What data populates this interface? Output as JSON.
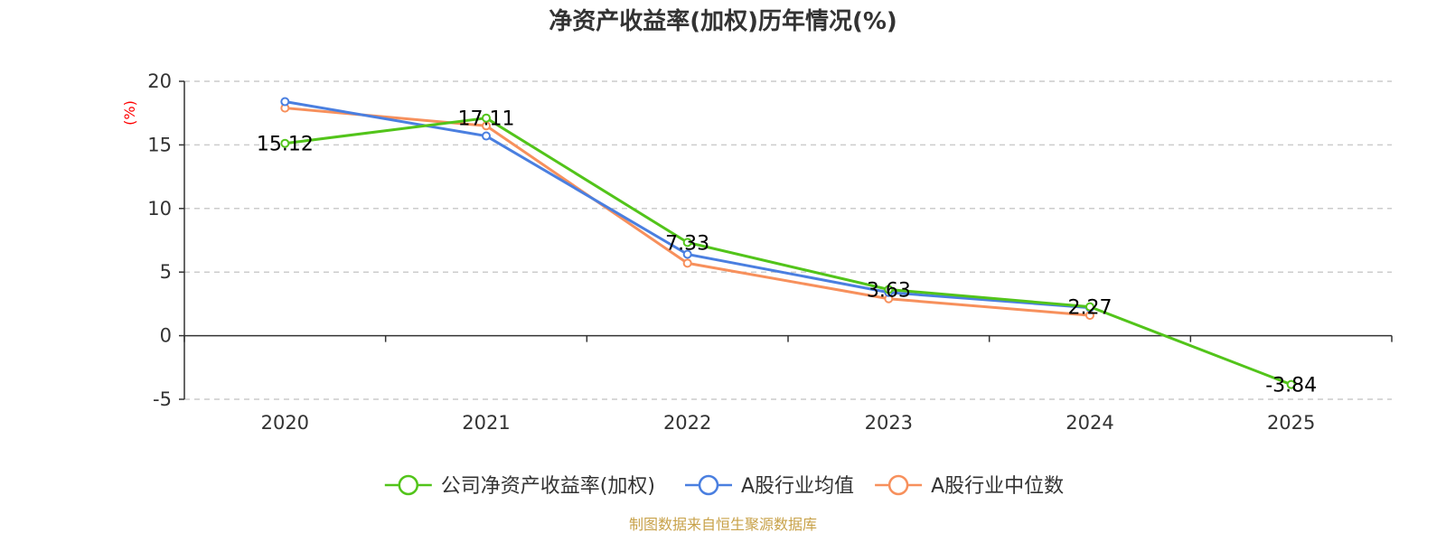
{
  "chart_data": {
    "type": "line",
    "title": "净资产收益率(加权)历年情况(%)",
    "ylabel": "(%)",
    "xlabel": "",
    "categories": [
      "2020",
      "2021",
      "2022",
      "2023",
      "2024",
      "2025"
    ],
    "ylim": [
      -5,
      20
    ],
    "yticks": [
      -5,
      0,
      5,
      10,
      15,
      20
    ],
    "grid": true,
    "legend_position": "bottom",
    "series": [
      {
        "name": "公司净资产收益率(加权)",
        "color": "#52c41a",
        "values": [
          15.12,
          17.11,
          7.33,
          3.63,
          2.27,
          -3.84
        ],
        "labels": [
          "15.12",
          "17.11",
          "7.33",
          "3.63",
          "2.27",
          "-3.84"
        ]
      },
      {
        "name": "A股行业均值",
        "color": "#4a7fe0",
        "values": [
          18.4,
          15.7,
          6.4,
          3.4,
          2.2,
          null
        ]
      },
      {
        "name": "A股行业中位数",
        "color": "#f7905c",
        "values": [
          17.9,
          16.5,
          5.7,
          2.9,
          1.6,
          null
        ]
      }
    ],
    "source": "制图数据来自恒生聚源数据库"
  }
}
